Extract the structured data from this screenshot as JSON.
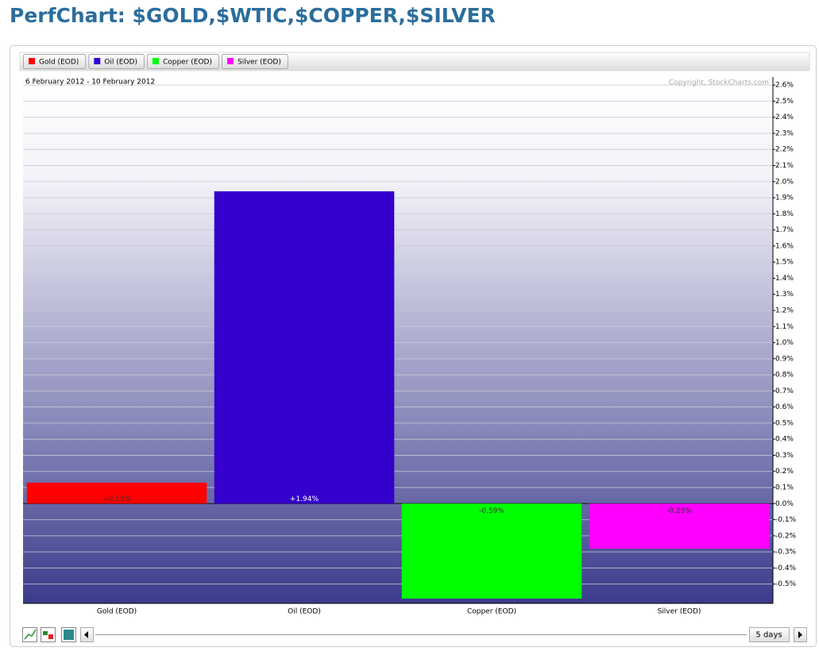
{
  "chart_data": {
    "type": "bar",
    "title": "PerfChart: $GOLD,$WTIC,$COPPER,$SILVER",
    "date_range": "6 February 2012 - 10 February 2012",
    "copyright": "Copyright, StockCharts.com",
    "categories": [
      "Gold (EOD)",
      "Oil (EOD)",
      "Copper (EOD)",
      "Silver (EOD)"
    ],
    "values": [
      0.13,
      1.94,
      -0.59,
      -0.28
    ],
    "value_labels": [
      "+0.13%",
      "+1.94%",
      "-0.59%",
      "-0.28%"
    ],
    "colors": [
      "#ff0000",
      "#3300cc",
      "#00ff00",
      "#ff00ff"
    ],
    "ylim": [
      -0.62,
      2.65
    ],
    "yticks": [
      {
        "value": -0.5,
        "label": "-0.5%"
      },
      {
        "value": -0.4,
        "label": "-0.4%"
      },
      {
        "value": -0.3,
        "label": "-0.3%"
      },
      {
        "value": -0.2,
        "label": "-0.2%"
      },
      {
        "value": -0.1,
        "label": "-0.1%"
      },
      {
        "value": 0,
        "label": "0.0%"
      },
      {
        "value": 0.1,
        "label": "0.1%"
      },
      {
        "value": 0.2,
        "label": "0.2%"
      },
      {
        "value": 0.3,
        "label": "0.3%"
      },
      {
        "value": 0.4,
        "label": "0.4%"
      },
      {
        "value": 0.5,
        "label": "0.5%"
      },
      {
        "value": 0.6,
        "label": "0.6%"
      },
      {
        "value": 0.7,
        "label": "0.7%"
      },
      {
        "value": 0.8,
        "label": "0.8%"
      },
      {
        "value": 0.9,
        "label": "0.9%"
      },
      {
        "value": 1.0,
        "label": "1.0%"
      },
      {
        "value": 1.1,
        "label": "1.1%"
      },
      {
        "value": 1.2,
        "label": "1.2%"
      },
      {
        "value": 1.3,
        "label": "1.3%"
      },
      {
        "value": 1.4,
        "label": "1.4%"
      },
      {
        "value": 1.5,
        "label": "1.5%"
      },
      {
        "value": 1.6,
        "label": "1.6%"
      },
      {
        "value": 1.7,
        "label": "1.7%"
      },
      {
        "value": 1.8,
        "label": "1.8%"
      },
      {
        "value": 1.9,
        "label": "1.9%"
      },
      {
        "value": 2.0,
        "label": "2.0%"
      },
      {
        "value": 2.1,
        "label": "2.1%"
      },
      {
        "value": 2.2,
        "label": "2.2%"
      },
      {
        "value": 2.3,
        "label": "2.3%"
      },
      {
        "value": 2.4,
        "label": "2.4%"
      },
      {
        "value": 2.5,
        "label": "2.5%"
      },
      {
        "value": 2.6,
        "label": "2.6%"
      }
    ],
    "grid": true
  },
  "controls": {
    "range_button": "5 days"
  }
}
